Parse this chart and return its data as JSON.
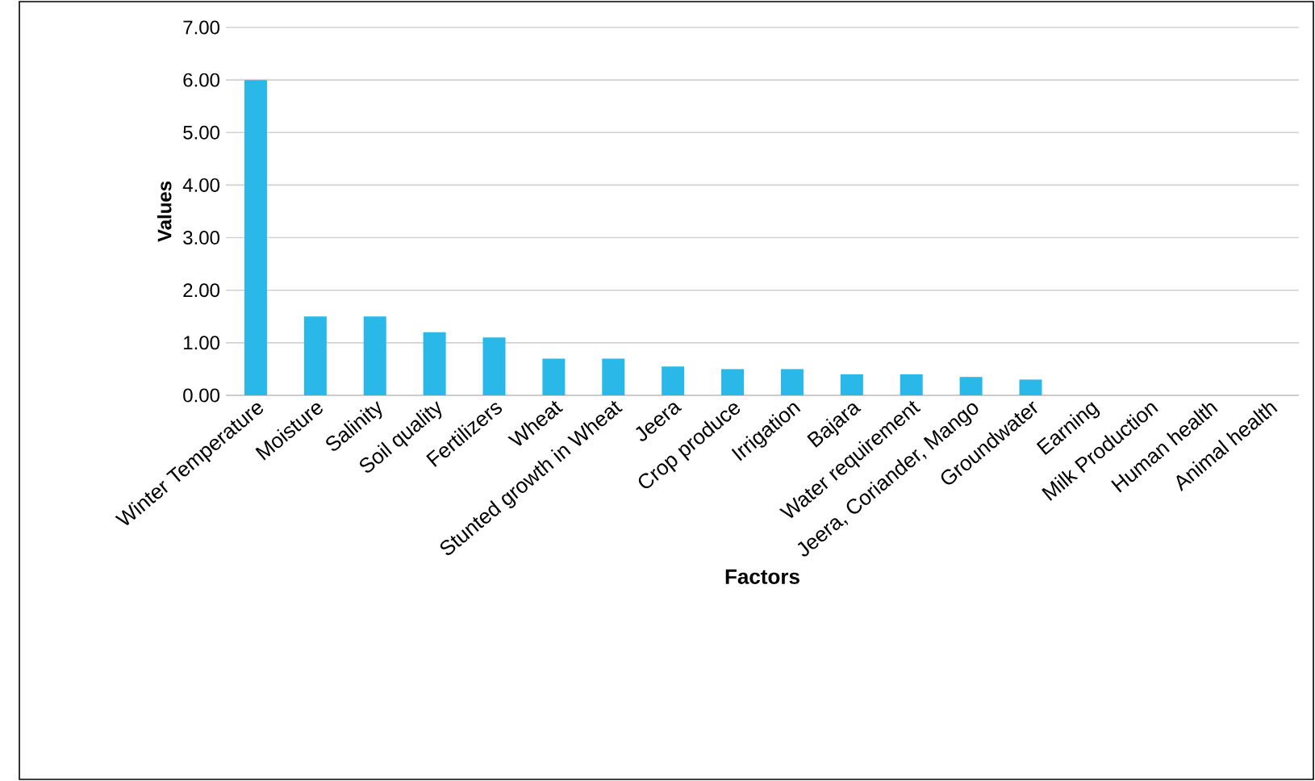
{
  "chart_data": {
    "type": "bar",
    "xlabel": "Factors",
    "ylabel": "Values",
    "categories": [
      "Winter Temperature",
      "Moisture",
      "Salinity",
      "Soil quality",
      "Fertilizers",
      "Wheat",
      "Stunted growth in Wheat",
      "Jeera",
      "Crop produce",
      "Irrigation",
      "Bajara",
      "Water requirement",
      "Jeera, Coriander, Mango",
      "Groundwater",
      "Earning",
      "Milk Production",
      "Human health",
      "Animal health"
    ],
    "values": [
      6.0,
      1.5,
      1.5,
      1.2,
      1.1,
      0.7,
      0.7,
      0.55,
      0.5,
      0.5,
      0.4,
      0.4,
      0.35,
      0.3,
      0,
      0,
      0,
      0
    ],
    "color": "#29b8e8",
    "ylim": [
      0,
      7
    ],
    "yticks": [
      {
        "value": 0,
        "label": "0.00"
      },
      {
        "value": 1,
        "label": "1.00"
      },
      {
        "value": 2,
        "label": "2.00"
      },
      {
        "value": 3,
        "label": "3.00"
      },
      {
        "value": 4,
        "label": "4.00"
      },
      {
        "value": 5,
        "label": "5.00"
      },
      {
        "value": 6,
        "label": "6.00"
      },
      {
        "value": 7,
        "label": "7.00"
      }
    ],
    "grid": "y"
  }
}
